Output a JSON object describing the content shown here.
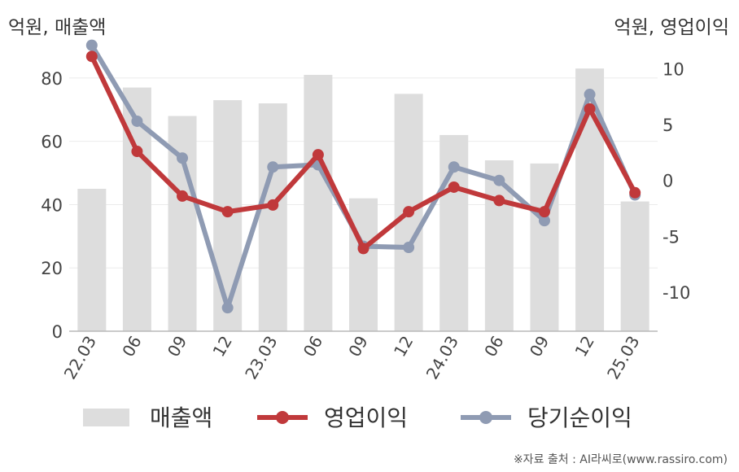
{
  "header": {
    "left_unit": "억원, 매출액",
    "right_unit": "억원, 영업이익"
  },
  "footer": {
    "source": "※자료 출처 : AI라씨로(www.rassiro.com)"
  },
  "chart_data": {
    "type": "bar+line",
    "categories": [
      "22.03",
      "06",
      "09",
      "12",
      "23.03",
      "06",
      "09",
      "12",
      "24.03",
      "06",
      "09",
      "12",
      "25.03"
    ],
    "left_axis": {
      "unit": "억원, 매출액",
      "ylim": [
        0,
        90
      ],
      "ticks": [
        0,
        20,
        40,
        60,
        80
      ]
    },
    "right_axis": {
      "unit": "억원, 영업이익",
      "ylim": [
        -13.5,
        12
      ],
      "ticks": [
        -10,
        -5,
        0,
        5,
        10
      ]
    },
    "series": [
      {
        "name": "매출액",
        "type": "bar",
        "axis": "left",
        "color": "#dddddd",
        "values": [
          45,
          77,
          68,
          73,
          72,
          81,
          42,
          75,
          62,
          54,
          53,
          83,
          41
        ]
      },
      {
        "name": "영업이익",
        "type": "line",
        "axis": "right",
        "color": "#c0393b",
        "values": [
          11.1,
          2.6,
          -1.4,
          -2.8,
          -2.2,
          2.3,
          -6.1,
          -2.8,
          -0.6,
          -1.8,
          -2.8,
          6.4,
          -1.1
        ]
      },
      {
        "name": "당기순이익",
        "type": "line",
        "axis": "right",
        "color": "#8f9bb3",
        "values": [
          12.1,
          5.3,
          2.0,
          -11.4,
          1.2,
          1.4,
          -5.9,
          -6.0,
          1.2,
          0.0,
          -3.6,
          7.7,
          -1.3
        ]
      }
    ],
    "grid": true,
    "legend": "bottom"
  }
}
